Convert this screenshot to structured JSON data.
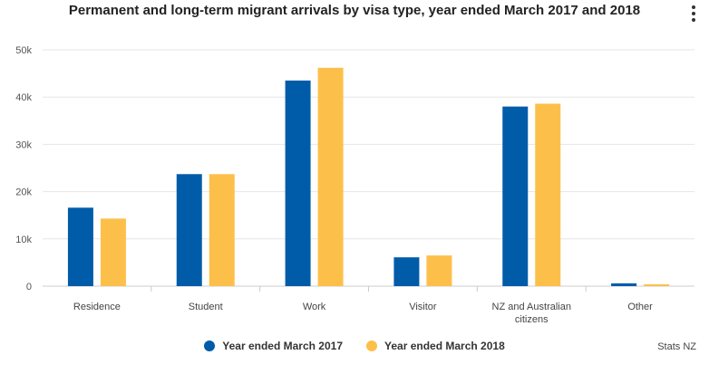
{
  "chart_data": {
    "type": "bar",
    "title": "Permanent and long-term migrant arrivals by visa type, year ended March 2017 and 2018",
    "categories": [
      "Residence",
      "Student",
      "Work",
      "Visitor",
      "NZ and Australian citizens",
      "Other"
    ],
    "series": [
      {
        "name": "Year ended March 2017",
        "color": "#005ca8",
        "values": [
          16600,
          23700,
          43500,
          6100,
          38000,
          600
        ]
      },
      {
        "name": "Year ended March 2018",
        "color": "#fcc04a",
        "values": [
          14300,
          23700,
          46200,
          6500,
          38600,
          400
        ]
      }
    ],
    "xlabel": "",
    "ylabel": "",
    "ylim": [
      0,
      50000
    ],
    "yticks": [
      0,
      10000,
      20000,
      30000,
      40000,
      50000
    ],
    "ytick_labels": [
      "0",
      "10k",
      "20k",
      "30k",
      "40k",
      "50k"
    ],
    "grid": true,
    "legend_position": "bottom-center",
    "source": "Stats NZ"
  }
}
